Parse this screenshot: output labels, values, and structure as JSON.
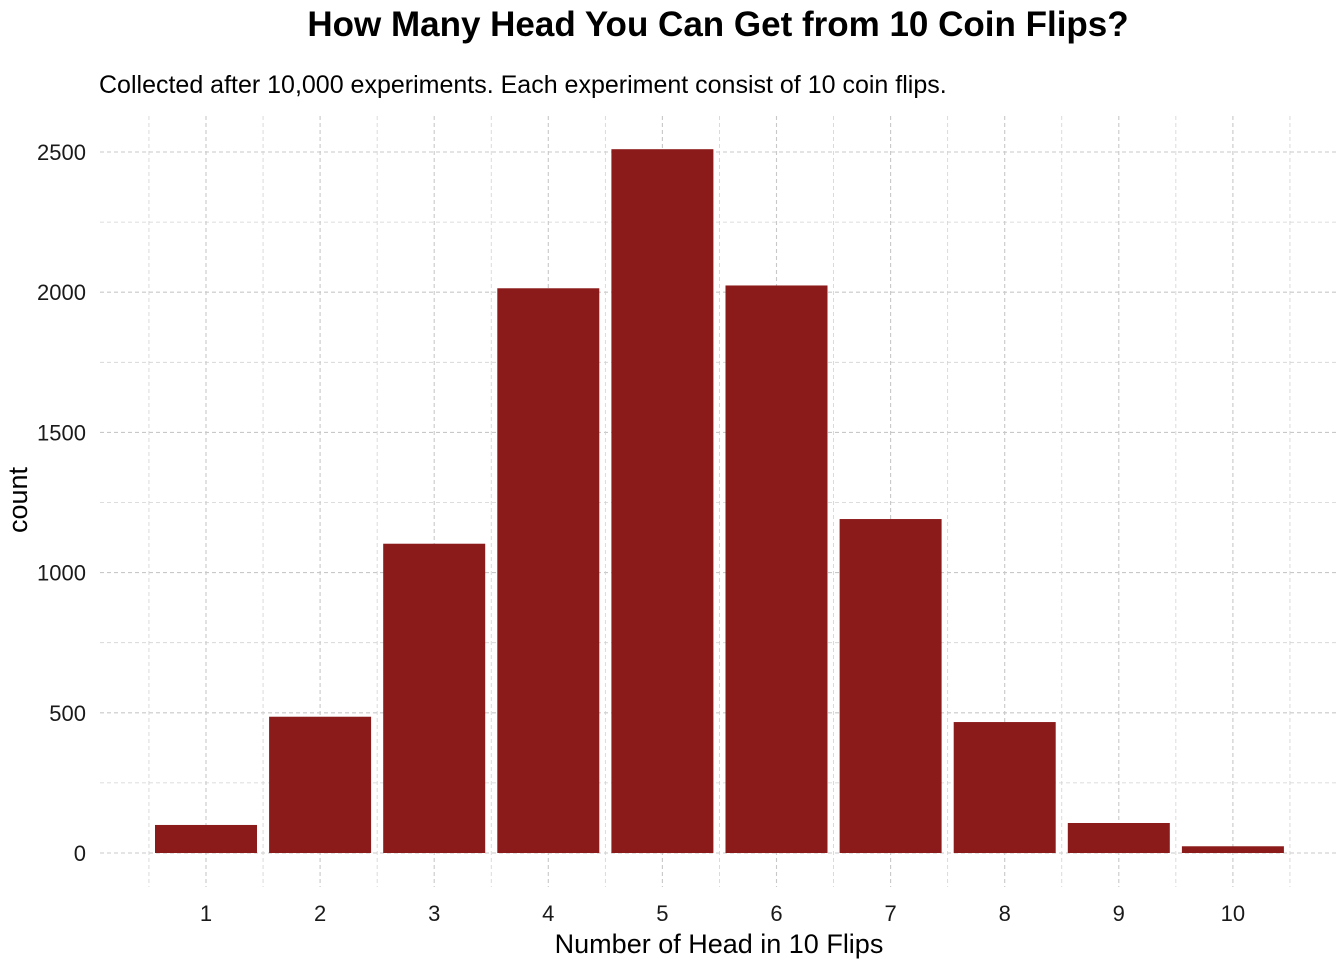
{
  "chart_data": {
    "type": "bar",
    "title": "How Many Head You Can Get from 10 Coin Flips?",
    "subtitle": "Collected after 10,000 experiments. Each experiment consist of 10 coin flips.",
    "xlabel": "Number of Head in 10 Flips",
    "ylabel": "count",
    "categories": [
      "1",
      "2",
      "3",
      "4",
      "5",
      "6",
      "7",
      "8",
      "9",
      "10"
    ],
    "values": [
      100,
      486,
      1103,
      2014,
      2510,
      2024,
      1191,
      467,
      107,
      24
    ],
    "ylim": [
      0,
      2600
    ],
    "yticks": [
      "0",
      "500",
      "1000",
      "1500",
      "2000",
      "2500"
    ],
    "bar_color": "#8B1A1A",
    "grid": true,
    "legend": "none"
  }
}
